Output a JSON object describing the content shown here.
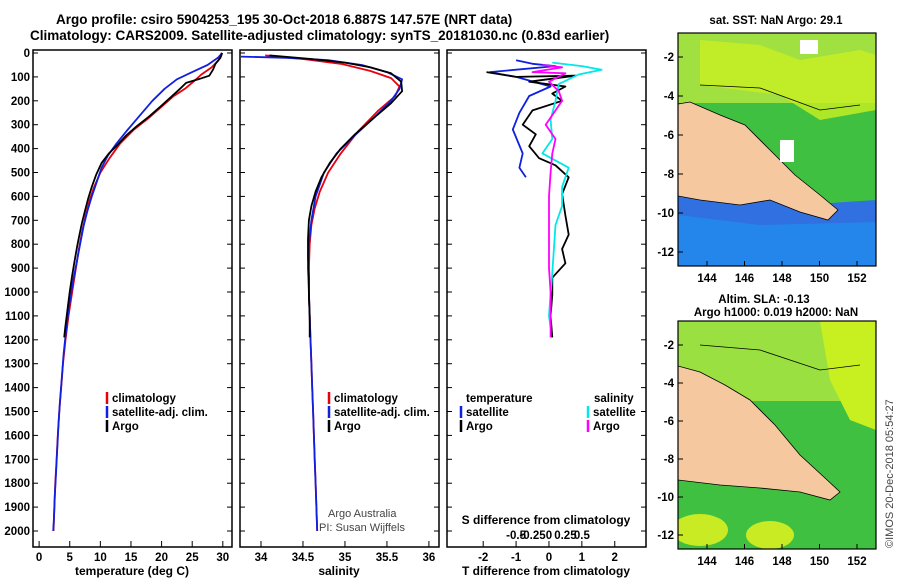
{
  "header": {
    "line1": "Argo profile: csiro 5904253_195 30-Oct-2018 6.887S 147.57E (NRT data)",
    "line2": "Climatology: CARS2009. Satellite-adjusted climatology: synTS_20181030.nc (0.83d earlier)"
  },
  "colors": {
    "climatology": "#e8000b",
    "satellite": "#1020e0",
    "argo": "#000000",
    "satellite_salinity": "#00e8e8",
    "argo_salinity": "#ff00ff"
  },
  "depth_ticks": [
    "0",
    "100",
    "200",
    "300",
    "400",
    "500",
    "600",
    "700",
    "800",
    "900",
    "1000",
    "1100",
    "1200",
    "1300",
    "1400",
    "1500",
    "1600",
    "1700",
    "1800",
    "1900",
    "2000"
  ],
  "chart_data": [
    {
      "type": "line",
      "id": "temperature",
      "xlabel": "temperature (deg C)",
      "xticks": [
        "0",
        "5",
        "10",
        "15",
        "20",
        "25",
        "30"
      ],
      "xlim": [
        -1,
        31.5
      ],
      "ylim": [
        2050,
        0
      ],
      "legend": [
        "climatology",
        "satellite-adj. clim.",
        "Argo"
      ],
      "series": [
        {
          "name": "climatology",
          "color": "#e8000b",
          "points": [
            [
              29.8,
              0
            ],
            [
              29.3,
              30
            ],
            [
              28.2,
              60
            ],
            [
              26.5,
              90
            ],
            [
              25.2,
              120
            ],
            [
              23.8,
              150
            ],
            [
              22,
              180
            ],
            [
              20.2,
              220
            ],
            [
              18,
              270
            ],
            [
              15.5,
              320
            ],
            [
              13.2,
              380
            ],
            [
              11.5,
              440
            ],
            [
              10,
              500
            ],
            [
              9,
              560
            ],
            [
              8.2,
              620
            ],
            [
              7.6,
              680
            ],
            [
              7,
              750
            ],
            [
              6.5,
              820
            ],
            [
              6,
              900
            ],
            [
              5.4,
              1000
            ],
            [
              4.8,
              1100
            ],
            [
              4.3,
              1200
            ],
            [
              3.9,
              1300
            ],
            [
              3.6,
              1400
            ],
            [
              3.3,
              1500
            ],
            [
              3.05,
              1600
            ],
            [
              2.85,
              1700
            ],
            [
              2.65,
              1800
            ],
            [
              2.5,
              1900
            ],
            [
              2.35,
              2000
            ]
          ]
        },
        {
          "name": "satellite-adj. clim.",
          "color": "#1020e0",
          "points": [
            [
              29.9,
              0
            ],
            [
              29.2,
              20
            ],
            [
              27.5,
              50
            ],
            [
              25,
              80
            ],
            [
              22.5,
              110
            ],
            [
              20.5,
              150
            ],
            [
              18.5,
              200
            ],
            [
              16.5,
              260
            ],
            [
              14.5,
              320
            ],
            [
              12.6,
              380
            ],
            [
              11.2,
              430
            ],
            [
              10.2,
              480
            ],
            [
              9.4,
              540
            ],
            [
              8.6,
              600
            ],
            [
              7.9,
              660
            ],
            [
              7.3,
              720
            ],
            [
              6.7,
              800
            ],
            [
              6.1,
              880
            ],
            [
              5.5,
              960
            ],
            [
              4.9,
              1060
            ],
            [
              4.4,
              1160
            ],
            [
              4,
              1260
            ],
            [
              3.7,
              1360
            ],
            [
              3.4,
              1460
            ],
            [
              3.15,
              1560
            ],
            [
              2.95,
              1660
            ],
            [
              2.75,
              1760
            ],
            [
              2.55,
              1860
            ],
            [
              2.4,
              1960
            ],
            [
              2.3,
              2000
            ]
          ]
        },
        {
          "name": "Argo",
          "color": "#000000",
          "points": [
            [
              29.9,
              0
            ],
            [
              29.6,
              20
            ],
            [
              28.8,
              45
            ],
            [
              28.4,
              70
            ],
            [
              27.8,
              95
            ],
            [
              26,
              110
            ],
            [
              24,
              125
            ],
            [
              23,
              150
            ],
            [
              21.5,
              185
            ],
            [
              20,
              220
            ],
            [
              18,
              265
            ],
            [
              16,
              305
            ],
            [
              14.2,
              345
            ],
            [
              12.8,
              385
            ],
            [
              11.4,
              420
            ],
            [
              10.2,
              460
            ],
            [
              9.3,
              510
            ],
            [
              8.6,
              560
            ],
            [
              8,
              610
            ],
            [
              7.5,
              660
            ],
            [
              7,
              710
            ],
            [
              6.6,
              760
            ],
            [
              6.2,
              810
            ],
            [
              5.8,
              870
            ],
            [
              5.4,
              930
            ],
            [
              5,
              1000
            ],
            [
              4.6,
              1080
            ],
            [
              4.3,
              1140
            ],
            [
              4.1,
              1190
            ]
          ]
        }
      ]
    },
    {
      "type": "line",
      "id": "salinity",
      "xlabel": "salinity",
      "xticks": [
        "34",
        "34.5",
        "35",
        "35.5",
        "36"
      ],
      "xlim": [
        33.75,
        36.12
      ],
      "ylim": [
        2050,
        0
      ],
      "legend": [
        "climatology",
        "satellite-adj. clim.",
        "Argo"
      ],
      "series": [
        {
          "name": "climatology",
          "color": "#e8000b",
          "points": [
            [
              34.05,
              10
            ],
            [
              34.5,
              25
            ],
            [
              34.95,
              45
            ],
            [
              35.3,
              75
            ],
            [
              35.55,
              105
            ],
            [
              35.65,
              140
            ],
            [
              35.6,
              180
            ],
            [
              35.4,
              240
            ],
            [
              35.15,
              330
            ],
            [
              34.95,
              420
            ],
            [
              34.8,
              500
            ],
            [
              34.7,
              580
            ],
            [
              34.64,
              650
            ],
            [
              34.6,
              720
            ],
            [
              34.58,
              800
            ],
            [
              34.57,
              900
            ],
            [
              34.57,
              1000
            ],
            [
              34.58,
              1100
            ],
            [
              34.59,
              1200
            ],
            [
              34.6,
              1300
            ],
            [
              34.61,
              1400
            ],
            [
              34.62,
              1500
            ],
            [
              34.63,
              1600
            ],
            [
              34.64,
              1700
            ],
            [
              34.65,
              1800
            ],
            [
              34.66,
              1900
            ],
            [
              34.67,
              2000
            ]
          ]
        },
        {
          "name": "satellite-adj. clim.",
          "color": "#1020e0",
          "points": [
            [
              33.75,
              15
            ],
            [
              34.3,
              20
            ],
            [
              34.8,
              30
            ],
            [
              35.2,
              50
            ],
            [
              35.5,
              80
            ],
            [
              35.68,
              110
            ],
            [
              35.65,
              150
            ],
            [
              35.55,
              200
            ],
            [
              35.35,
              270
            ],
            [
              35.1,
              350
            ],
            [
              34.9,
              420
            ],
            [
              34.75,
              500
            ],
            [
              34.65,
              600
            ],
            [
              34.6,
              700
            ],
            [
              34.57,
              800
            ],
            [
              34.56,
              900
            ],
            [
              34.57,
              1000
            ],
            [
              34.58,
              1100
            ],
            [
              34.59,
              1200
            ],
            [
              34.6,
              1300
            ],
            [
              34.61,
              1400
            ],
            [
              34.62,
              1500
            ],
            [
              34.63,
              1600
            ],
            [
              34.64,
              1700
            ],
            [
              34.65,
              1800
            ],
            [
              34.66,
              1900
            ],
            [
              34.67,
              2000
            ]
          ]
        },
        {
          "name": "Argo",
          "color": "#000000",
          "points": [
            [
              34.1,
              10
            ],
            [
              34.6,
              25
            ],
            [
              35.0,
              40
            ],
            [
              35.3,
              60
            ],
            [
              35.55,
              85
            ],
            [
              35.67,
              120
            ],
            [
              35.68,
              160
            ],
            [
              35.55,
              210
            ],
            [
              35.35,
              270
            ],
            [
              35.12,
              340
            ],
            [
              34.95,
              400
            ],
            [
              34.82,
              460
            ],
            [
              34.72,
              520
            ],
            [
              34.65,
              580
            ],
            [
              34.6,
              640
            ],
            [
              34.57,
              700
            ],
            [
              34.56,
              780
            ],
            [
              34.56,
              860
            ],
            [
              34.57,
              940
            ],
            [
              34.57,
              1020
            ],
            [
              34.58,
              1100
            ],
            [
              34.58,
              1190
            ]
          ]
        }
      ]
    },
    {
      "type": "line",
      "id": "difference",
      "xlabel": "T difference from climatology",
      "xlabel_top": "S difference from climatology",
      "xticks": [
        "-2",
        "-1",
        "0",
        "1",
        "2"
      ],
      "xticks_s": [
        "-0.5",
        "-0.25",
        "0",
        "0.25",
        "0.5"
      ],
      "xlim": [
        -3.1,
        2.95
      ],
      "ylim": [
        2050,
        0
      ],
      "legend_left_title": "temperature",
      "legend_right_title": "salinity",
      "legend": [
        "satellite",
        "Argo"
      ],
      "series": [
        {
          "name": "satellite",
          "group": "temperature",
          "color": "#1020e0",
          "points": [
            [
              -1.0,
              30
            ],
            [
              -0.5,
              45
            ],
            [
              0.2,
              55
            ],
            [
              -1.8,
              80
            ],
            [
              -1.0,
              100
            ],
            [
              0.05,
              140
            ],
            [
              -0.6,
              180
            ],
            [
              -0.9,
              250
            ],
            [
              -1.1,
              320
            ],
            [
              -0.8,
              420
            ],
            [
              -0.9,
              480
            ],
            [
              -0.7,
              520
            ]
          ]
        },
        {
          "name": "Argo",
          "group": "temperature",
          "color": "#000000",
          "points": [
            [
              -1.9,
              80
            ],
            [
              -1.0,
              100
            ],
            [
              0.8,
              95
            ],
            [
              -0.6,
              120
            ],
            [
              0.5,
              140
            ],
            [
              0.1,
              170
            ],
            [
              0.4,
              200
            ],
            [
              -0.5,
              240
            ],
            [
              -0.8,
              300
            ],
            [
              -0.4,
              340
            ],
            [
              -0.6,
              390
            ],
            [
              -0.3,
              440
            ],
            [
              0.2,
              470
            ],
            [
              0.6,
              520
            ],
            [
              0.4,
              590
            ],
            [
              0.5,
              680
            ],
            [
              0.6,
              760
            ],
            [
              0.4,
              820
            ],
            [
              0.5,
              880
            ],
            [
              0.1,
              940
            ],
            [
              0.1,
              1010
            ],
            [
              0.05,
              1100
            ],
            [
              0.1,
              1190
            ]
          ]
        },
        {
          "name": "satellite",
          "group": "salinity",
          "color": "#00e8e8",
          "points": [
            [
              0.1,
              40
            ],
            [
              1.0,
              55
            ],
            [
              1.6,
              70
            ],
            [
              0.9,
              90
            ],
            [
              0.3,
              130
            ],
            [
              0.2,
              200
            ],
            [
              0.05,
              280
            ],
            [
              0.1,
              360
            ],
            [
              -0.2,
              420
            ],
            [
              0.6,
              480
            ],
            [
              0.4,
              560
            ],
            [
              0.4,
              640
            ],
            [
              0.2,
              720
            ],
            [
              0.15,
              820
            ],
            [
              0.1,
              920
            ],
            [
              0.05,
              1010
            ],
            [
              0.0,
              1100
            ],
            [
              0.05,
              1150
            ]
          ]
        },
        {
          "name": "Argo",
          "group": "salinity",
          "color": "#ff00ff",
          "points": [
            [
              -0.2,
              50
            ],
            [
              0.4,
              60
            ],
            [
              -0.5,
              80
            ],
            [
              0.5,
              85
            ],
            [
              0.0,
              120
            ],
            [
              0.3,
              160
            ],
            [
              0.4,
              200
            ],
            [
              0.1,
              260
            ],
            [
              -0.1,
              300
            ],
            [
              0.2,
              360
            ],
            [
              0.1,
              420
            ],
            [
              0.05,
              500
            ],
            [
              0.0,
              600
            ],
            [
              0.0,
              700
            ],
            [
              0.0,
              800
            ],
            [
              0.0,
              900
            ],
            [
              0.05,
              1000
            ],
            [
              0.05,
              1100
            ],
            [
              0.05,
              1190
            ]
          ]
        }
      ]
    }
  ],
  "maps": {
    "top_title": "sat. SST: NaN Argo: 29.1",
    "bottom_title1": "Altim. SLA: -0.13",
    "bottom_title2": "Argo h1000: 0.019 h2000: NaN",
    "lat_ticks": [
      "-2",
      "-4",
      "-6",
      "-8",
      "-10",
      "-12"
    ],
    "lon_ticks": [
      "144",
      "146",
      "148",
      "150",
      "152"
    ]
  },
  "credits": {
    "line1": "Argo Australia",
    "line2": "PI: Susan Wijffels",
    "stamp": "©IMOS 20-Dec-2018 05:54:27"
  }
}
